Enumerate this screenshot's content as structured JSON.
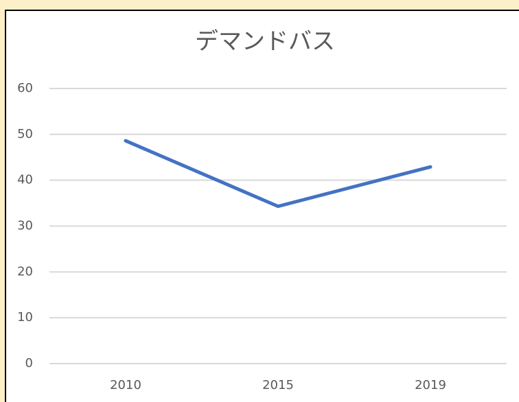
{
  "chart_data": {
    "type": "line",
    "title": "デマンドバス",
    "categories": [
      "2010",
      "2015",
      "2019"
    ],
    "series": [
      {
        "name": "デマンドバス",
        "color": "#4472c4",
        "values": [
          48.6,
          34.3,
          42.9
        ]
      }
    ],
    "ylim": [
      0,
      60
    ],
    "yticks": [
      0,
      10,
      20,
      30,
      40,
      50,
      60
    ],
    "grid": true
  }
}
